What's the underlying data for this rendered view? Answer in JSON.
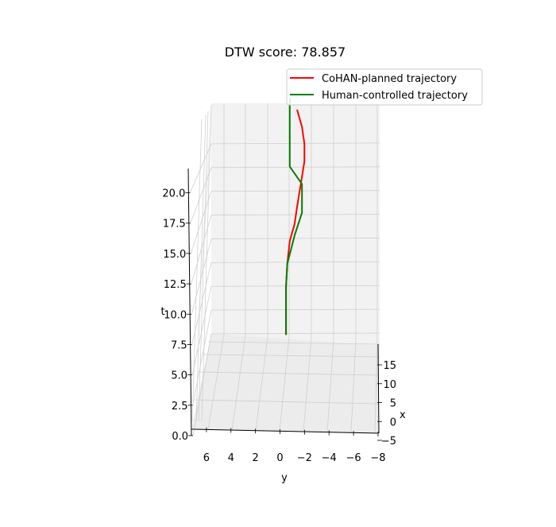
{
  "chart_data": {
    "type": "line",
    "projection": "3d",
    "title": "DTW score: 78.857",
    "xlabel": "x",
    "ylabel": "y",
    "zlabel": "t",
    "x_ticks": [
      -5,
      0,
      5,
      10,
      15
    ],
    "y_ticks": [
      6,
      4,
      2,
      0,
      -2,
      -4,
      -6,
      -8
    ],
    "y_tick_labels": [
      "6",
      "4",
      "2",
      "0",
      "−2",
      "−4",
      "−6",
      "−8"
    ],
    "t_ticks": [
      0.0,
      2.5,
      5.0,
      7.5,
      10.0,
      12.5,
      15.0,
      17.5,
      20.0
    ],
    "t_tick_labels": [
      "0.0",
      "2.5",
      "5.0",
      "7.5",
      "10.0",
      "12.5",
      "15.0",
      "17.5",
      "20.0"
    ],
    "grid": true,
    "legend_position": "top-right",
    "series": [
      {
        "name": "CoHAN-planned trajectory",
        "color": "#ff0000",
        "y": [
          -0.3,
          -0.3,
          -0.3,
          -0.4,
          -0.6,
          -1.0,
          -1.2,
          -1.5,
          -1.8,
          -1.8,
          -1.6,
          -1.2
        ],
        "t": [
          1.8,
          4.0,
          6.0,
          8.0,
          10.0,
          11.5,
          13.0,
          15.0,
          17.0,
          18.5,
          20.0,
          21.5
        ]
      },
      {
        "name": "Human-controlled trajectory",
        "color": "#008000",
        "y": [
          -0.3,
          -0.3,
          -0.3,
          -0.4,
          -1.0,
          -1.6,
          -1.6,
          -0.6,
          -0.6
        ],
        "t": [
          1.8,
          4.0,
          6.0,
          8.0,
          10.5,
          12.5,
          15.0,
          16.5,
          22.5
        ]
      }
    ]
  }
}
